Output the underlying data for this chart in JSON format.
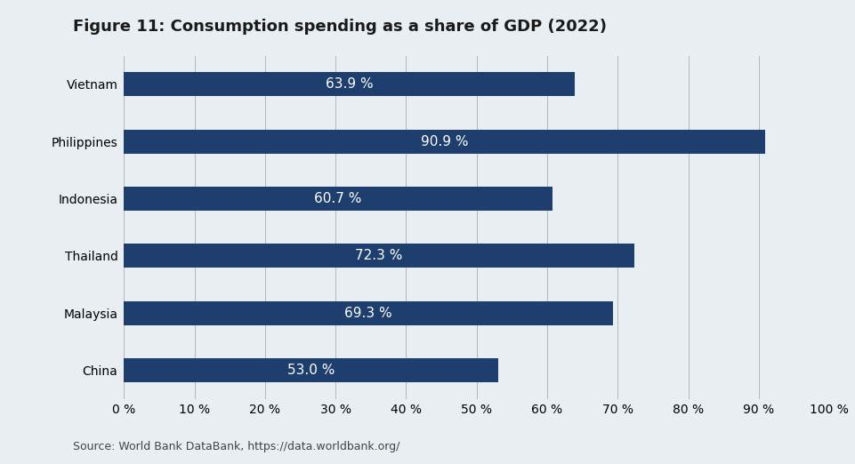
{
  "title": "Figure 11: Consumption spending as a share of GDP (2022)",
  "categories": [
    "Vietnam",
    "Philippines",
    "Indonesia",
    "Thailand",
    "Malaysia",
    "China"
  ],
  "values": [
    63.9,
    90.9,
    60.7,
    72.3,
    69.3,
    53.0
  ],
  "bar_color": "#1e3f6d",
  "background_color": "#e8eef2",
  "bar_label_color": "#ffffff",
  "bar_label_fontsize": 11,
  "title_fontsize": 13,
  "xlabel_ticks": [
    0,
    10,
    20,
    30,
    40,
    50,
    60,
    70,
    80,
    90,
    100
  ],
  "xlim": [
    0,
    105
  ],
  "source_text": "Source: World Bank DataBank, https://data.worldbank.org/",
  "source_fontsize": 9,
  "grid_color": "#b0b8c0",
  "axis_label_fontsize": 10,
  "bar_height": 0.42
}
